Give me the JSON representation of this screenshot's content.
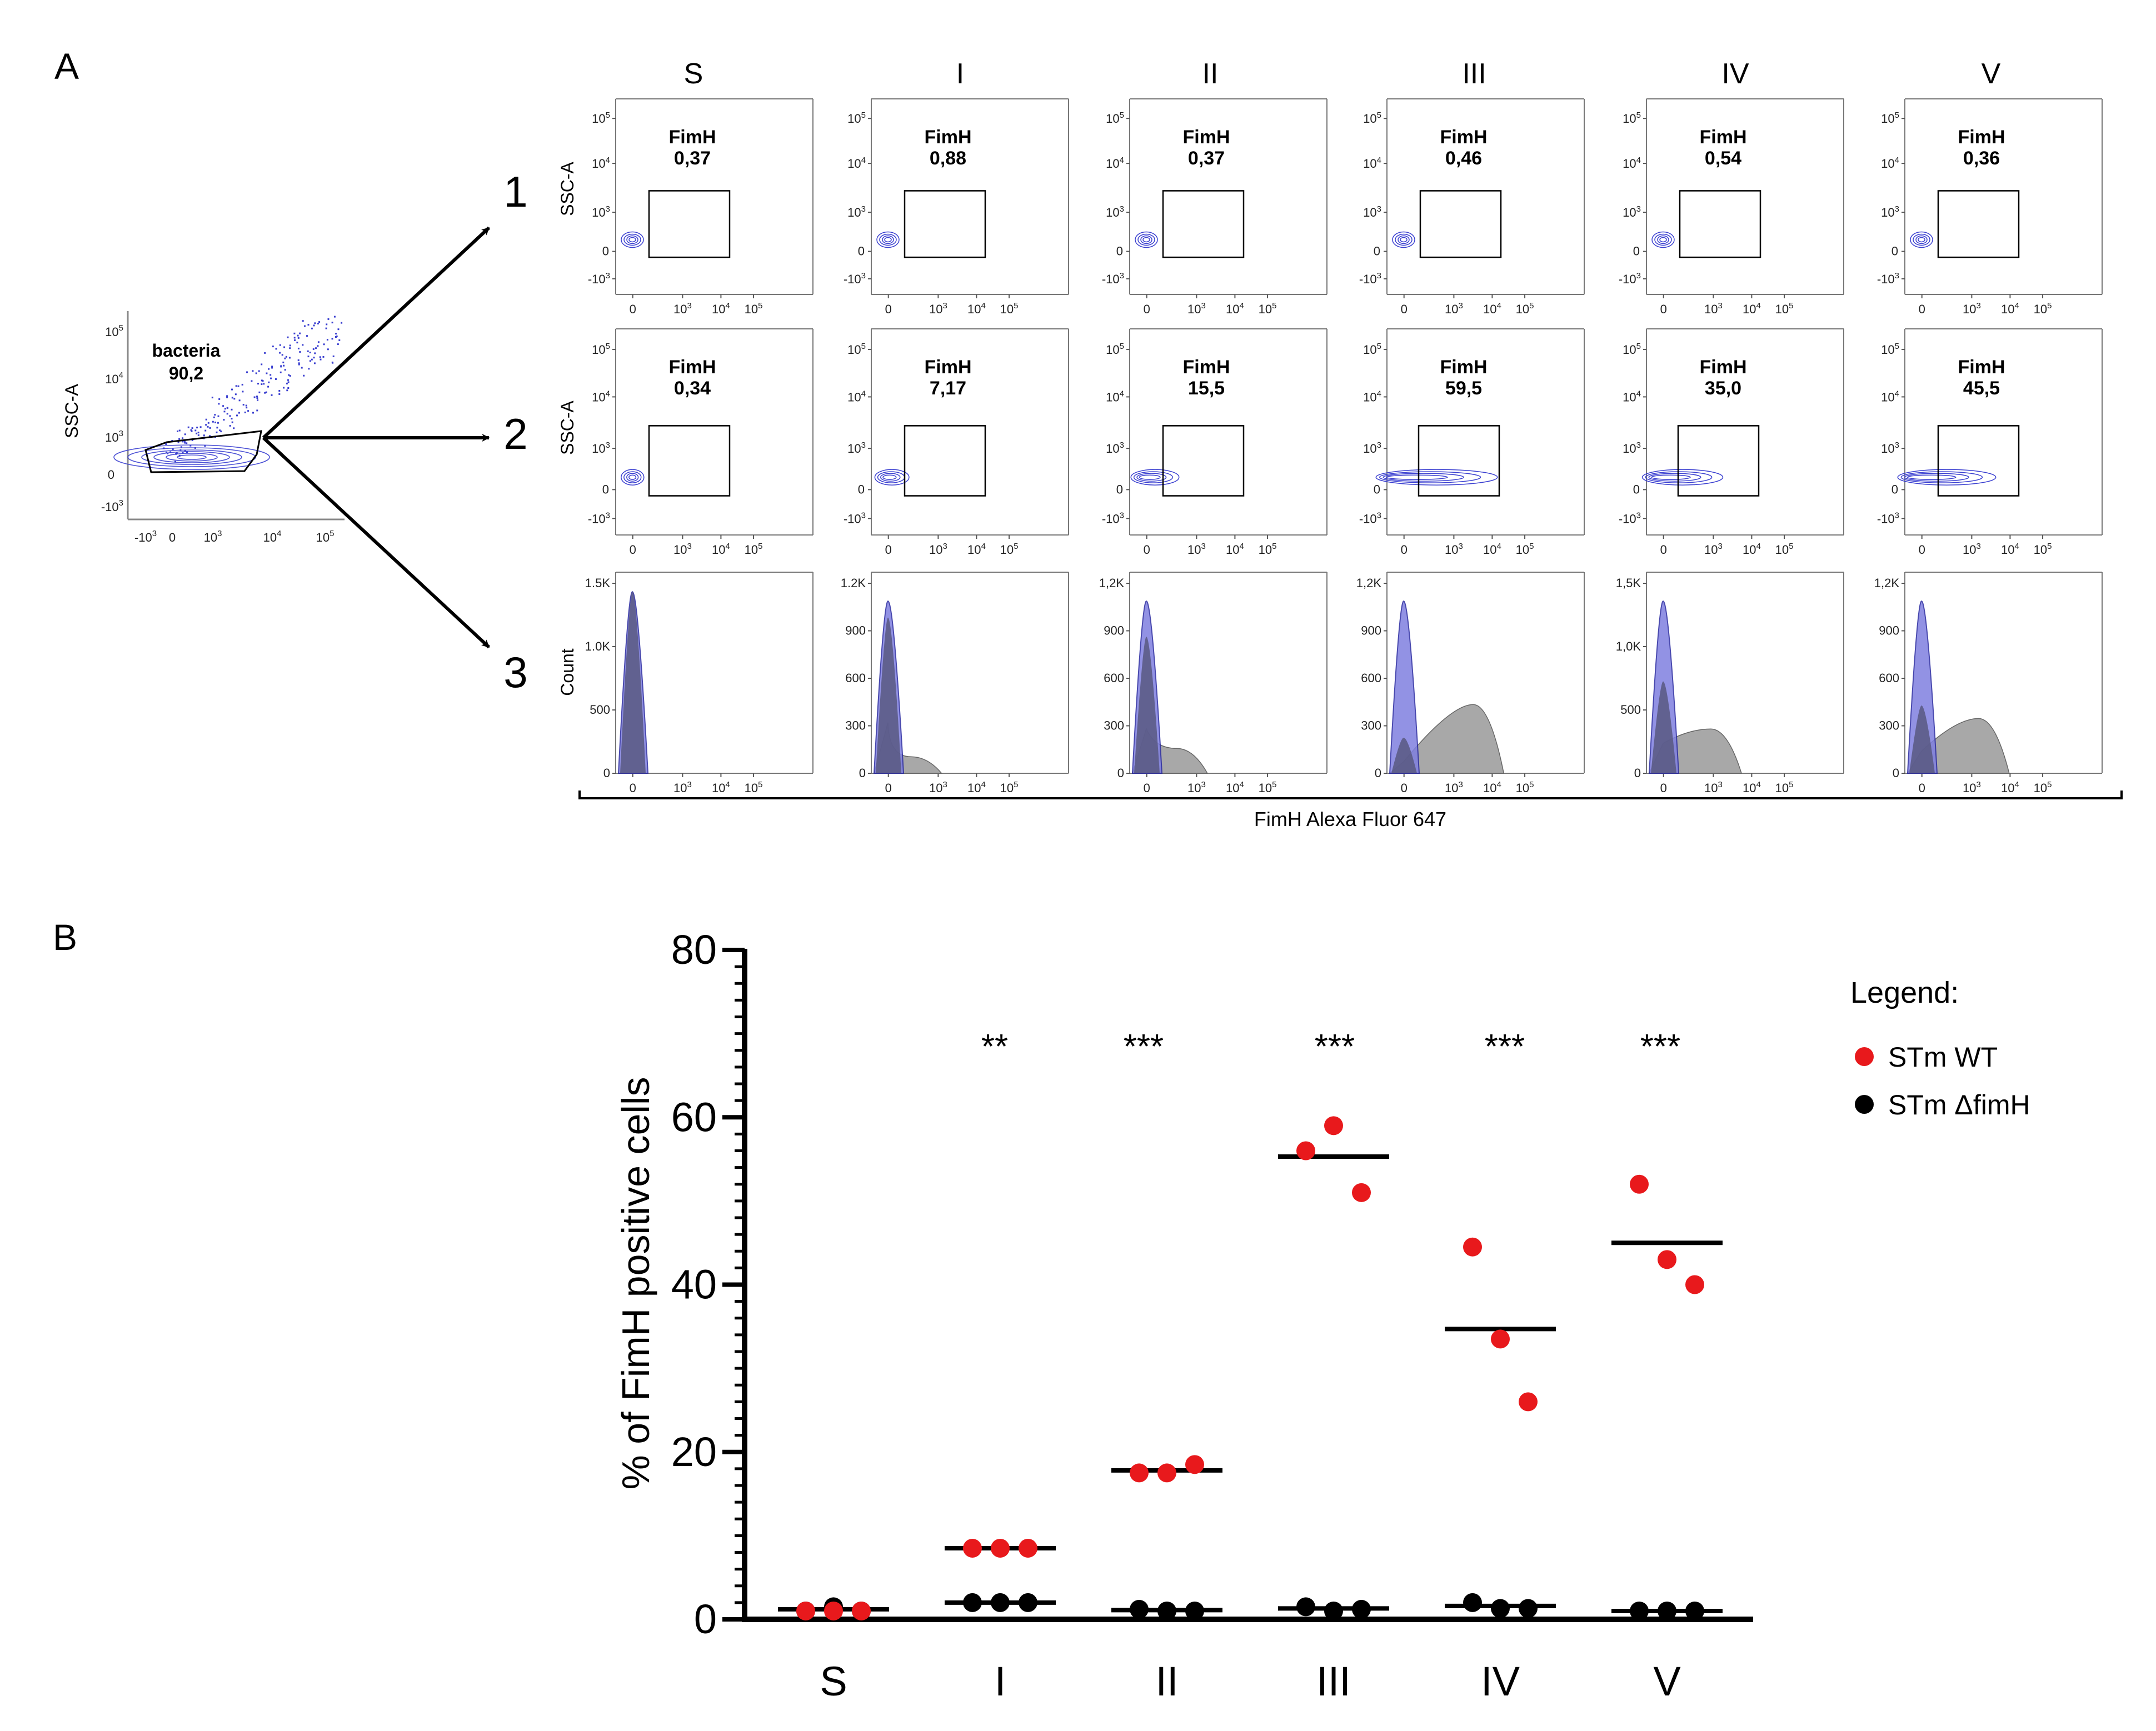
{
  "panel_a": {
    "label": "A",
    "columns": [
      "S",
      "I",
      "II",
      "III",
      "IV",
      "V"
    ],
    "row_numbers": [
      "1",
      "2",
      "3"
    ],
    "row_y_labels": [
      "SSC-A",
      "SSC-A",
      "Count"
    ],
    "shared_x_label": "FimH Alexa Fluor 647",
    "gate_name": "FimH",
    "axis": {
      "zero": "0",
      "exp3": "3",
      "exp4": "4",
      "exp5": "5"
    },
    "row1_values": [
      "0,37",
      "0,88",
      "0,37",
      "0,46",
      "0,54",
      "0,36"
    ],
    "row2_values": [
      "0,34",
      "7,17",
      "15,5",
      "59,5",
      "35,0",
      "45,5"
    ],
    "histogram_y_ticks": [
      [
        "1.5K",
        "1.0K",
        "500",
        "0"
      ],
      [
        "1.2K",
        "900",
        "600",
        "300",
        "0"
      ],
      [
        "1,2K",
        "900",
        "600",
        "300",
        "0"
      ],
      [
        "1,2K",
        "900",
        "600",
        "300",
        "0"
      ],
      [
        "1,5K",
        "1,0K",
        "500",
        "0"
      ],
      [
        "1,2K",
        "900",
        "600",
        "300",
        "0"
      ]
    ],
    "gating_plot": {
      "y_label": "SSC-A",
      "gate_label": "bacteria",
      "gate_value": "90,2"
    },
    "colors": {
      "contour": "#3a3fd0",
      "hist_blue": "#8080e0",
      "hist_grey": "#a8a8a8"
    }
  },
  "panel_b": {
    "label": "B",
    "chart_ylabel": "% of FimH positive cells",
    "legend": {
      "title": "Legend:",
      "items": [
        "STm WT",
        "STm ΔfimH"
      ]
    },
    "colors": {
      "wt": "#e8191c",
      "dfimh": "#000000"
    }
  },
  "chart_data": {
    "type": "scatter",
    "title": "",
    "xlabel": "",
    "ylabel": "% of FimH positive cells",
    "categories": [
      "S",
      "I",
      "II",
      "III",
      "IV",
      "V"
    ],
    "ylim": [
      0,
      80
    ],
    "y_ticks": [
      0,
      20,
      40,
      60,
      80
    ],
    "significance": [
      "",
      "**",
      "***",
      "***",
      "***",
      "***"
    ],
    "legend_position": "top-right",
    "series": [
      {
        "name": "STm WT",
        "color": "#e8191c",
        "values": [
          [
            1,
            1,
            1
          ],
          [
            8.5,
            8.5,
            8.5
          ],
          [
            17.5,
            17.5,
            18.5
          ],
          [
            56,
            59,
            51
          ],
          [
            44.5,
            33.5,
            26
          ],
          [
            52,
            43,
            40
          ]
        ],
        "means": [
          1,
          8.5,
          17.8,
          55.3,
          34.7,
          45
        ]
      },
      {
        "name": "STm ΔfimH",
        "color": "#000000",
        "values": [
          [
            1,
            1.5,
            1
          ],
          [
            2,
            2,
            2
          ],
          [
            1.2,
            1,
            1
          ],
          [
            1.5,
            1,
            1.2
          ],
          [
            2,
            1.3,
            1.3
          ],
          [
            1,
            1,
            1
          ]
        ],
        "means": [
          1.2,
          2,
          1.1,
          1.3,
          1.6,
          1
        ]
      }
    ]
  }
}
